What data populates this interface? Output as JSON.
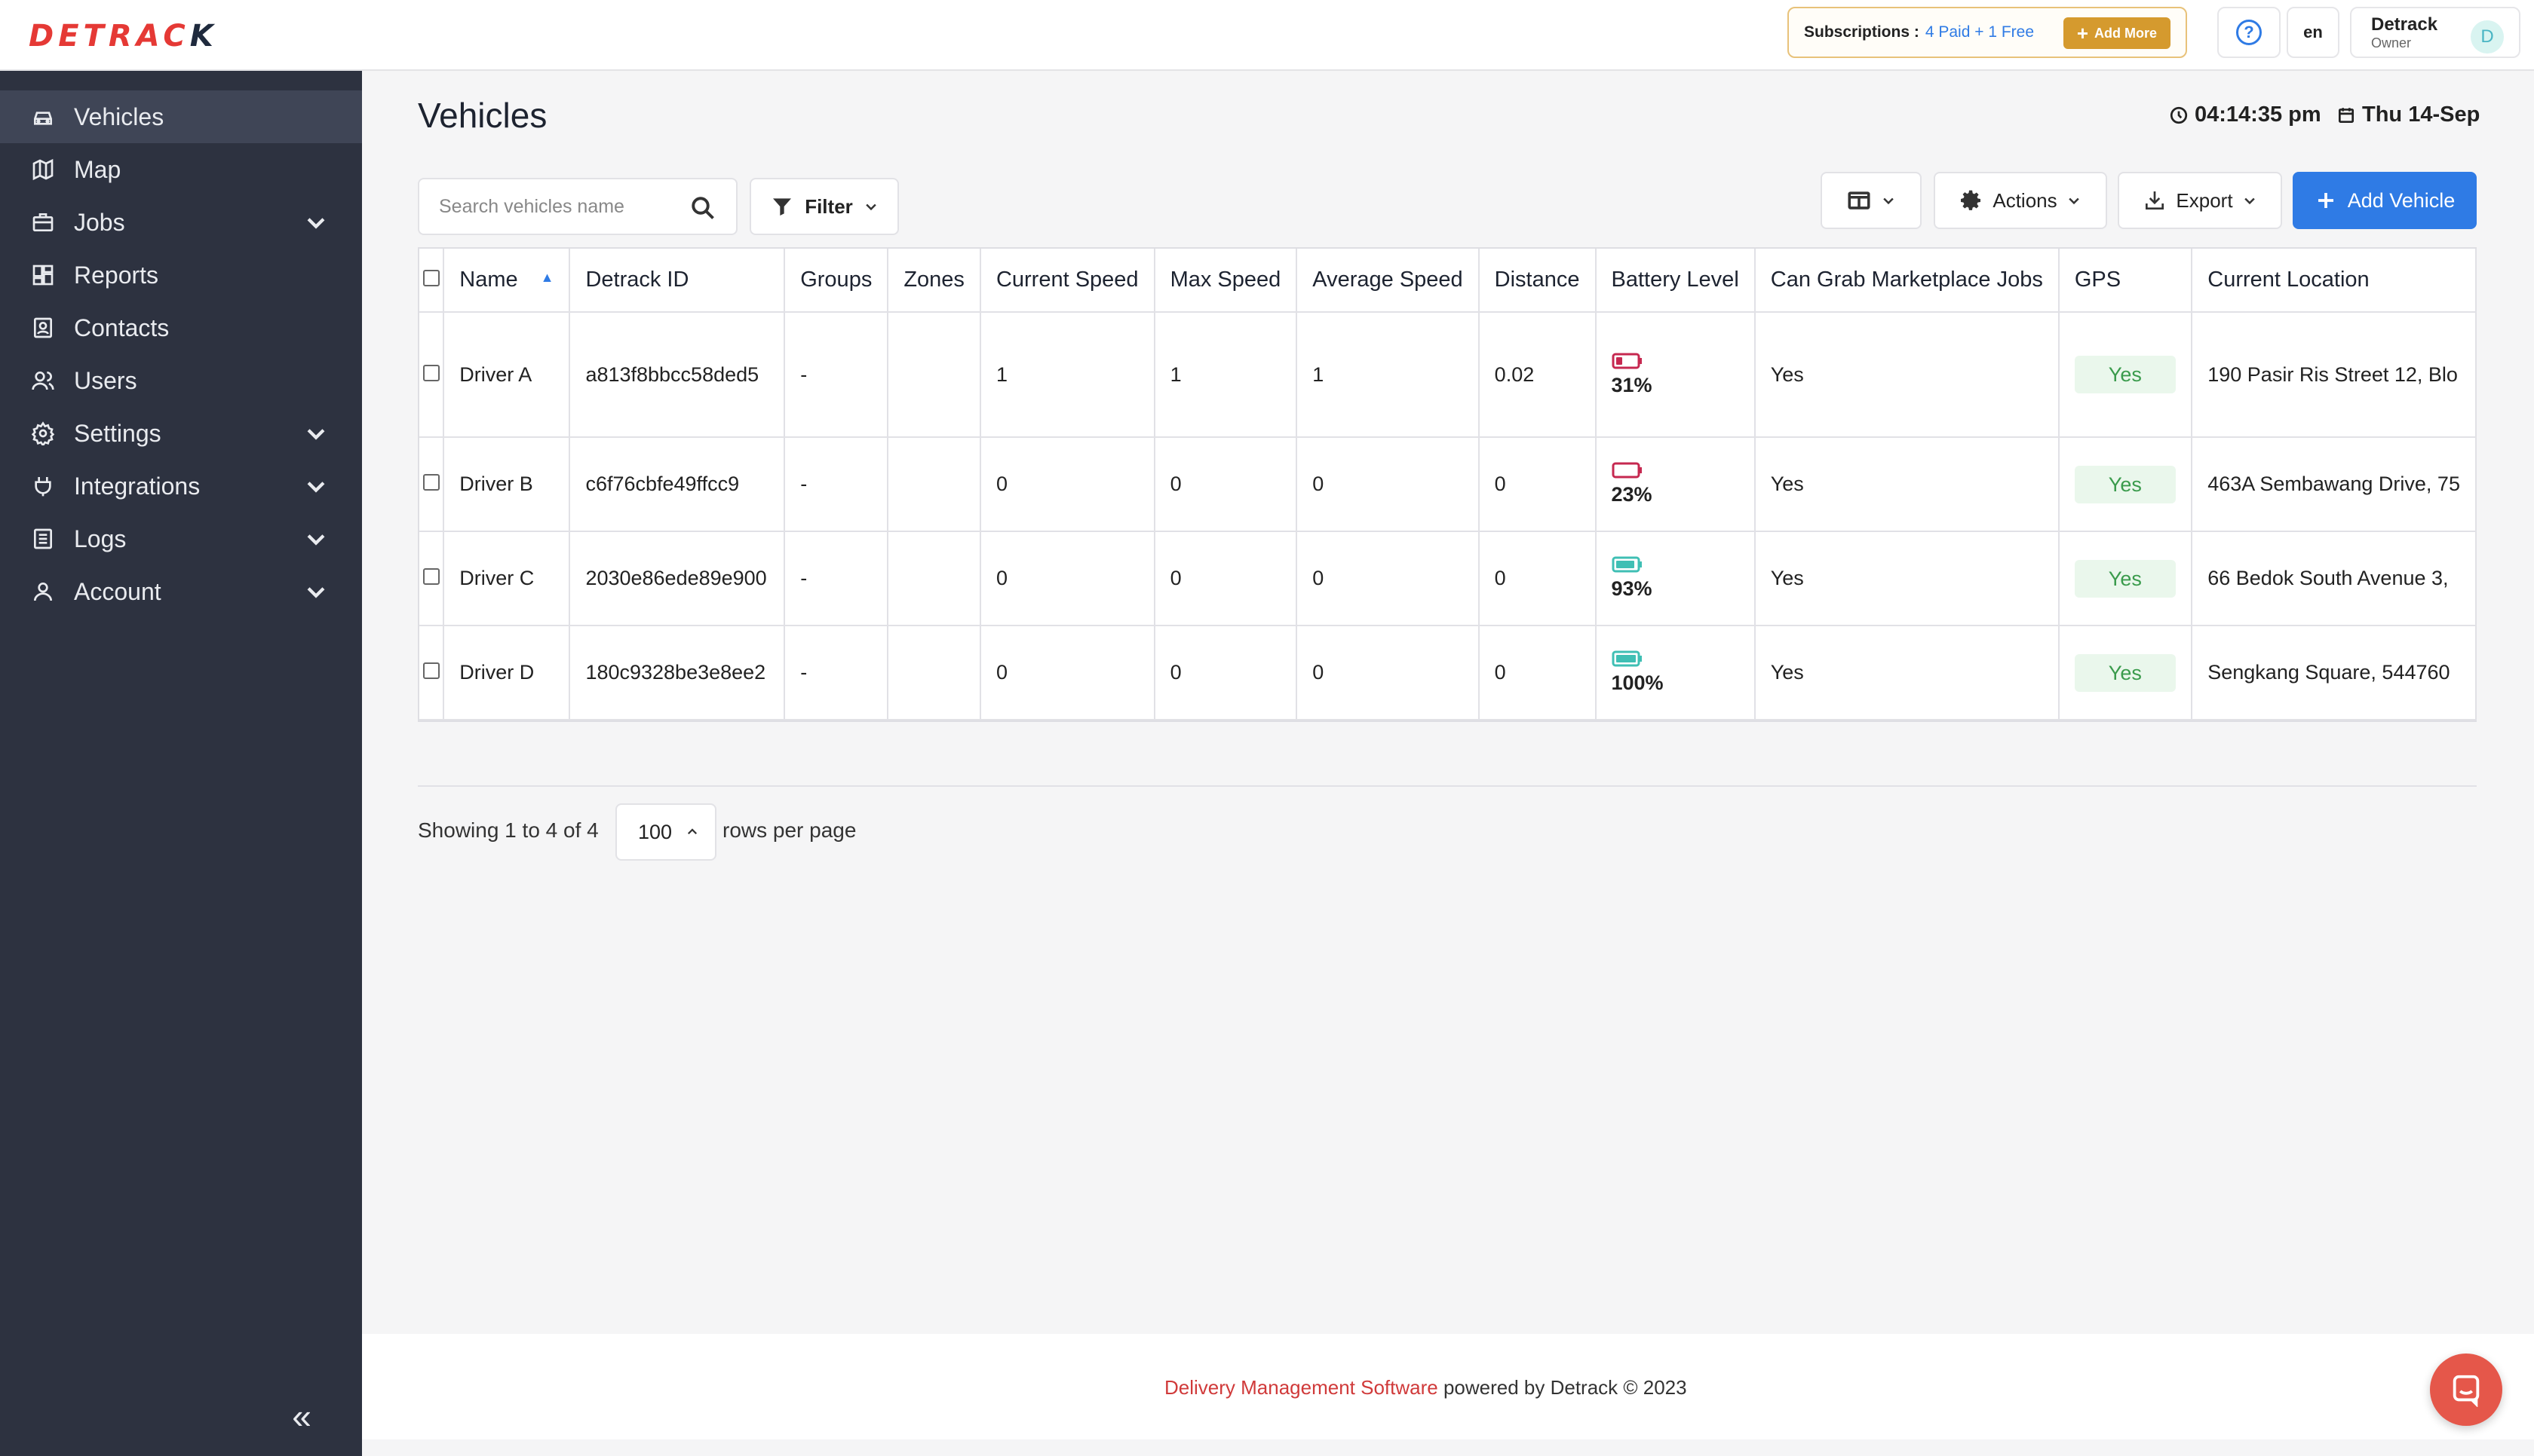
{
  "brand": {
    "name_main": "DETRAC",
    "name_end": "K"
  },
  "header": {
    "subscriptions_label": "Subscriptions :",
    "subscriptions_value": "4 Paid + 1 Free",
    "add_more_label": "Add More",
    "help_icon": "question-circle-icon",
    "language": "en",
    "user_name": "Detrack",
    "user_role": "Owner",
    "avatar_initial": "D"
  },
  "sidebar": {
    "items": [
      {
        "label": "Vehicles",
        "icon": "car-icon"
      },
      {
        "label": "Map",
        "icon": "map-icon"
      },
      {
        "label": "Jobs",
        "icon": "briefcase-icon"
      },
      {
        "label": "Reports",
        "icon": "dashboard-icon"
      },
      {
        "label": "Contacts",
        "icon": "contact-book-icon"
      },
      {
        "label": "Users",
        "icon": "users-icon"
      },
      {
        "label": "Settings",
        "icon": "gear-icon"
      },
      {
        "label": "Integrations",
        "icon": "plug-icon"
      },
      {
        "label": "Logs",
        "icon": "list-icon"
      },
      {
        "label": "Account",
        "icon": "user-icon"
      }
    ],
    "collapse_glyph": "«"
  },
  "page": {
    "title": "Vehicles",
    "time": "04:14:35 pm",
    "date": "Thu 14-Sep"
  },
  "toolbar": {
    "search_placeholder": "Search vehicles name",
    "filter_label": "Filter",
    "actions_label": "Actions",
    "export_label": "Export",
    "add_vehicle_label": "Add Vehicle"
  },
  "table": {
    "columns": [
      "Name",
      "Detrack ID",
      "Groups",
      "Zones",
      "Current Speed",
      "Max Speed",
      "Average Speed",
      "Distance",
      "Battery Level",
      "Can Grab Marketplace Jobs",
      "GPS",
      "Current Location"
    ],
    "rows": [
      {
        "name": "Driver A",
        "detrack_id": "a813f8bbcc58ded5",
        "groups": "-",
        "zones": "",
        "current_speed": "1",
        "max_speed": "1",
        "average_speed": "1",
        "distance": "0.02",
        "battery": "31%",
        "battery_level": 0.31,
        "battery_color": "#c62850",
        "marketplace": "Yes",
        "gps": "Yes",
        "location": "190 Pasir Ris Street 12, Blo"
      },
      {
        "name": "Driver B",
        "detrack_id": "c6f76cbfe49ffcc9",
        "groups": "-",
        "zones": "",
        "current_speed": "0",
        "max_speed": "0",
        "average_speed": "0",
        "distance": "0",
        "battery": "23%",
        "battery_level": 0.23,
        "battery_color": "#c62850",
        "marketplace": "Yes",
        "gps": "Yes",
        "location": "463A Sembawang Drive, 75"
      },
      {
        "name": "Driver C",
        "detrack_id": "2030e86ede89e900",
        "groups": "-",
        "zones": "",
        "current_speed": "0",
        "max_speed": "0",
        "average_speed": "0",
        "distance": "0",
        "battery": "93%",
        "battery_level": 0.93,
        "battery_color": "#3fbfb4",
        "marketplace": "Yes",
        "gps": "Yes",
        "location": "66 Bedok South Avenue 3,"
      },
      {
        "name": "Driver D",
        "detrack_id": "180c9328be3e8ee2",
        "groups": "-",
        "zones": "",
        "current_speed": "0",
        "max_speed": "0",
        "average_speed": "0",
        "distance": "0",
        "battery": "100%",
        "battery_level": 1.0,
        "battery_color": "#3fbfb4",
        "marketplace": "Yes",
        "gps": "Yes",
        "location": "Sengkang Square, 544760"
      }
    ]
  },
  "pagination": {
    "showing": "Showing 1 to 4 of 4",
    "rows_value": "100",
    "rows_per_page": "rows per page"
  },
  "footer": {
    "link": "Delivery Management Software",
    "rest": " powered by Detrack © 2023"
  },
  "colors": {
    "primary": "#2f7be5",
    "sidebar": "#2d3240",
    "accent_gold": "#d59a2e",
    "brand_red": "#e53935"
  }
}
